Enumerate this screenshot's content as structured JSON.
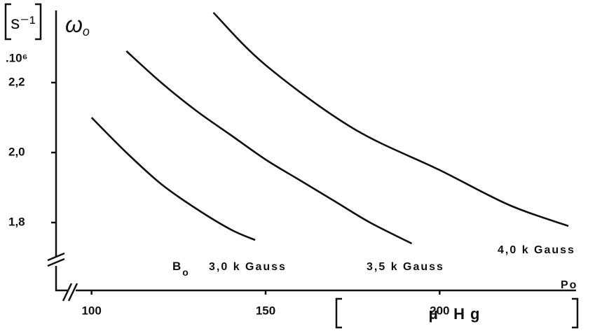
{
  "chart_data": {
    "type": "line",
    "y_unit": "s⁻¹",
    "y_label": {
      "symbol": "ω",
      "subscript": "o"
    },
    "y_multiplier": ".10⁶",
    "x_label": "Po",
    "x_unit": "μ Hg",
    "annotation": {
      "symbol": "B",
      "subscript": "o"
    },
    "xlim": [
      90,
      240
    ],
    "ylim": [
      1.6,
      2.4
    ],
    "xticks": [
      100,
      150,
      200
    ],
    "yticks": [
      {
        "value": 1.8,
        "label": "1,8"
      },
      {
        "value": 2.0,
        "label": "2,0"
      },
      {
        "value": 2.2,
        "label": "2,2"
      }
    ],
    "series": [
      {
        "name": "3,0 k Gauss",
        "color": "#111111",
        "x": [
          100,
          110,
          120,
          130,
          140,
          147
        ],
        "values": [
          2.1,
          2.0,
          1.91,
          1.84,
          1.78,
          1.75
        ]
      },
      {
        "name": "3,5 k Gauss",
        "color": "#111111",
        "x": [
          110,
          120,
          130,
          140,
          150,
          160,
          170,
          180,
          192
        ],
        "values": [
          2.29,
          2.2,
          2.12,
          2.05,
          1.98,
          1.92,
          1.86,
          1.8,
          1.74
        ]
      },
      {
        "name": "4,0 k Gauss",
        "color": "#111111",
        "x": [
          135,
          150,
          175,
          200,
          220,
          237
        ],
        "values": [
          2.4,
          2.25,
          2.07,
          1.95,
          1.85,
          1.79
        ]
      }
    ]
  }
}
